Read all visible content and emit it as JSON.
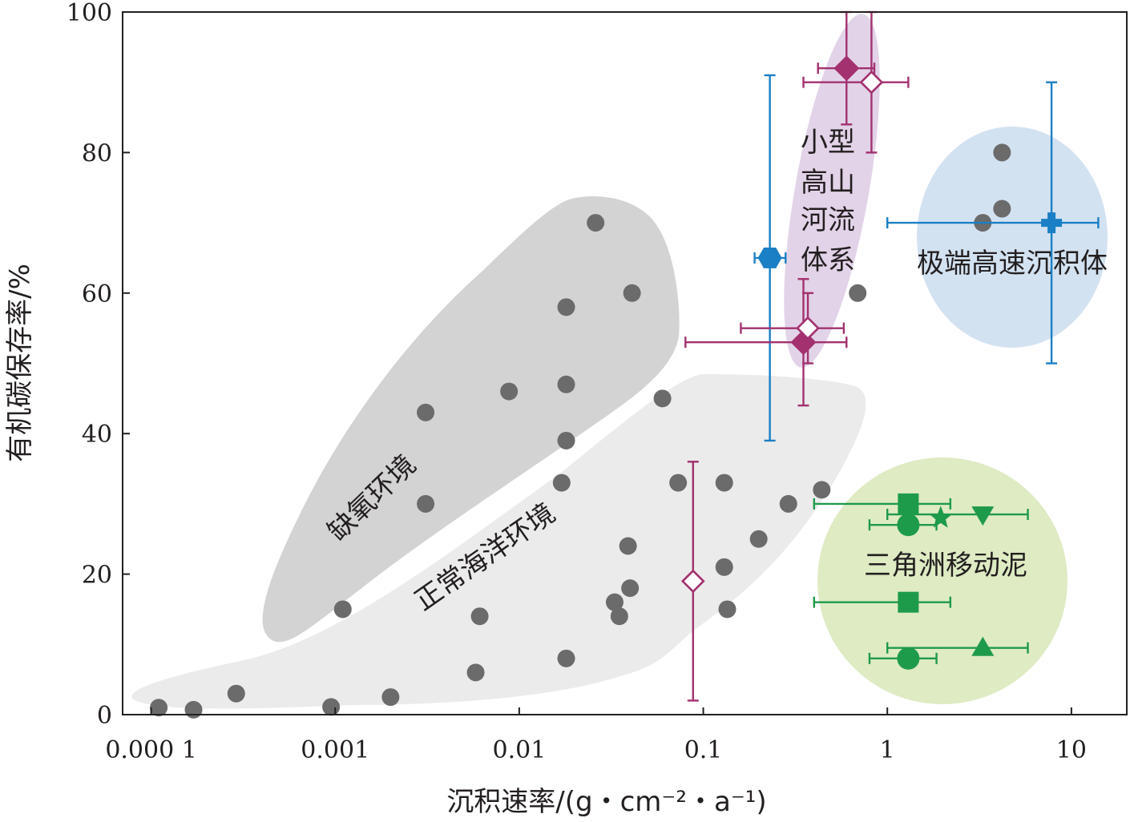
{
  "chart_data": {
    "type": "scatter",
    "x_scale": "log",
    "xlim": [
      7e-05,
      20
    ],
    "ylim": [
      0,
      100
    ],
    "grid": false,
    "xlabel": "沉积速率/(g・cm⁻²・a⁻¹)",
    "ylabel": "有机碳保存率/%",
    "x_ticks": [
      0.0001,
      0.001,
      0.01,
      0.1,
      1,
      10
    ],
    "x_tick_labels": [
      "0.000 1",
      "0.001",
      "0.01",
      "0.1",
      "1",
      "10"
    ],
    "y_ticks": [
      0,
      20,
      40,
      60,
      80,
      100
    ],
    "y_tick_labels": [
      "0",
      "20",
      "40",
      "60",
      "80",
      "100"
    ],
    "colors": {
      "gray_points": "#6b6b6b",
      "blue": "#1a7fc4",
      "magenta": "#a3316f",
      "green": "#1e9a4b",
      "anoxic_region": "#d3d3d3",
      "marine_region": "#ebebeb",
      "mountain_region": "#e2d3e8",
      "high_rate_region": "#d3e2f1",
      "delta_region": "#deebc3"
    },
    "regions": [
      {
        "id": "anoxic",
        "label": "缺氧环境"
      },
      {
        "id": "marine",
        "label": "正常海洋环境"
      },
      {
        "id": "mountain",
        "label_lines": [
          "小型",
          "高山",
          "河流",
          "体系"
        ]
      },
      {
        "id": "high_rate",
        "label": "极端高速沉积体"
      },
      {
        "id": "delta",
        "label": "三角洲移动泥"
      }
    ],
    "gray_points": [
      [
        0.00011,
        1
      ],
      [
        0.00017,
        0.7
      ],
      [
        0.00029,
        3
      ],
      [
        0.00095,
        1.1
      ],
      [
        0.0011,
        15
      ],
      [
        0.002,
        2.5
      ],
      [
        0.0031,
        43
      ],
      [
        0.0031,
        30
      ],
      [
        0.0058,
        6
      ],
      [
        0.0061,
        14
      ],
      [
        0.0088,
        46
      ],
      [
        0.017,
        33
      ],
      [
        0.018,
        58
      ],
      [
        0.018,
        47
      ],
      [
        0.018,
        39
      ],
      [
        0.018,
        8
      ],
      [
        0.026,
        70
      ],
      [
        0.033,
        16
      ],
      [
        0.035,
        14
      ],
      [
        0.039,
        24
      ],
      [
        0.04,
        18
      ],
      [
        0.041,
        60
      ],
      [
        0.06,
        45
      ],
      [
        0.073,
        33
      ],
      [
        0.13,
        21
      ],
      [
        0.13,
        33
      ],
      [
        0.135,
        15
      ],
      [
        0.2,
        25
      ],
      [
        0.29,
        30
      ],
      [
        0.44,
        32
      ],
      [
        0.69,
        60
      ],
      [
        3.3,
        70
      ],
      [
        4.2,
        80
      ],
      [
        4.2,
        72
      ]
    ],
    "series": [
      {
        "marker": "hexagon",
        "color": "blue",
        "filled": true,
        "points": [
          {
            "x": 0.23,
            "y": 65,
            "xerr": [
              0.19,
              0.28
            ],
            "yerr": [
              39,
              91
            ]
          }
        ]
      },
      {
        "marker": "plus",
        "color": "blue",
        "filled": true,
        "points": [
          {
            "x": 7.8,
            "y": 70,
            "xerr": [
              1,
              14
            ],
            "yerr": [
              50,
              90
            ]
          }
        ]
      },
      {
        "marker": "diamond",
        "color": "magenta",
        "filled": true,
        "points": [
          {
            "x": 0.6,
            "y": 92,
            "xerr": [
              0.42,
              0.85
            ],
            "yerr": [
              84,
              100
            ]
          },
          {
            "x": 0.35,
            "y": 53,
            "xerr": [
              0.08,
              0.6
            ],
            "yerr": [
              44,
              62
            ]
          }
        ]
      },
      {
        "marker": "diamond",
        "color": "magenta",
        "filled": false,
        "points": [
          {
            "x": 0.82,
            "y": 90,
            "xerr": [
              0.35,
              1.3
            ],
            "yerr": [
              80,
              100
            ]
          },
          {
            "x": 0.37,
            "y": 55,
            "xerr": [
              0.16,
              0.58
            ],
            "yerr": [
              50,
              60
            ]
          },
          {
            "x": 0.088,
            "y": 19,
            "xerr": null,
            "yerr": [
              2,
              36
            ]
          }
        ]
      },
      {
        "marker": "square",
        "color": "green",
        "filled": true,
        "points": [
          {
            "x": 1.3,
            "y": 30,
            "xerr": [
              0.4,
              2.2
            ],
            "yerr": null
          },
          {
            "x": 1.3,
            "y": 16,
            "xerr": [
              0.4,
              2.2
            ],
            "yerr": null
          }
        ]
      },
      {
        "marker": "circle",
        "color": "green",
        "filled": true,
        "points": [
          {
            "x": 1.3,
            "y": 27,
            "xerr": [
              0.8,
              1.85
            ],
            "yerr": null
          },
          {
            "x": 1.3,
            "y": 8,
            "xerr": [
              0.8,
              1.85
            ],
            "yerr": null
          }
        ]
      },
      {
        "marker": "star",
        "color": "green",
        "filled": true,
        "points": [
          {
            "x": 1.95,
            "y": 28,
            "xerr": null,
            "yerr": null
          }
        ]
      },
      {
        "marker": "triangle-down",
        "color": "green",
        "filled": true,
        "points": [
          {
            "x": 3.3,
            "y": 28.5,
            "xerr": [
              1,
              5.8
            ],
            "yerr": null
          }
        ]
      },
      {
        "marker": "triangle-up",
        "color": "green",
        "filled": true,
        "points": [
          {
            "x": 3.3,
            "y": 9.5,
            "xerr": [
              1,
              5.8
            ],
            "yerr": null
          }
        ]
      }
    ]
  }
}
